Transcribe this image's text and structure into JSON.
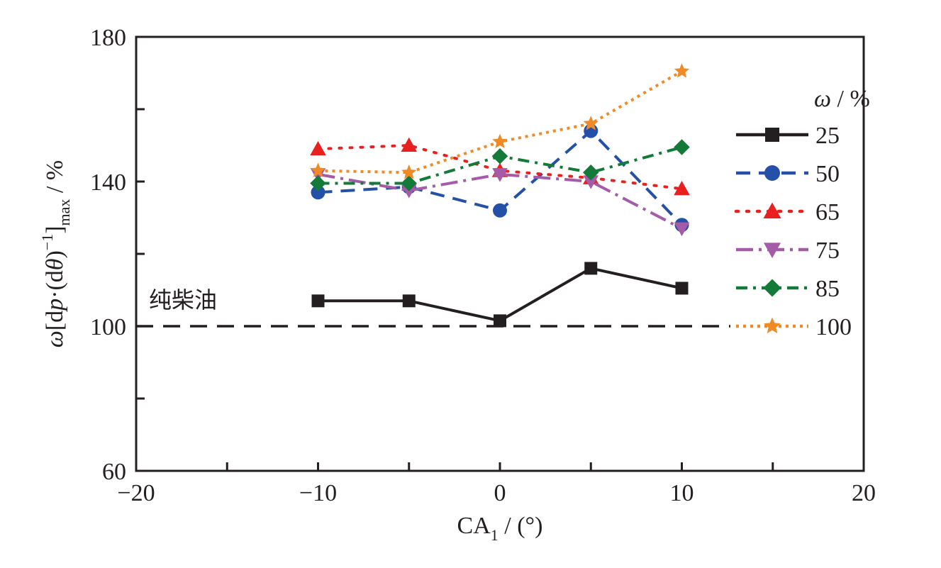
{
  "chart_data": {
    "type": "line",
    "title": "",
    "xlabel": {
      "main": "CA",
      "sub": "1",
      "suffix": " / (°)"
    },
    "ylabel": {
      "omega": "ω",
      "p1": "[d",
      "p": "p",
      "p2": "·(d",
      "theta": "θ",
      "p3": ")",
      "sup": "−1",
      "p4": "]",
      "sub": "max",
      "suffix": " / %"
    },
    "xlim": [
      -20,
      20
    ],
    "ylim": [
      60,
      180
    ],
    "xticks": [
      -20,
      -15,
      -10,
      -5,
      0,
      5,
      10,
      15,
      20
    ],
    "xtick_labels": [
      "−20",
      "",
      "−10",
      "",
      "0",
      "",
      "10",
      "",
      "20"
    ],
    "yticks": [
      60,
      80,
      100,
      120,
      140,
      160,
      180
    ],
    "ytick_labels": [
      "60",
      "",
      "100",
      "",
      "140",
      "",
      "180"
    ],
    "x": [
      -10,
      -5,
      0,
      5,
      10
    ],
    "legend_title": {
      "omega": "ω",
      "suffix": " / %"
    },
    "reference": {
      "label": "纯柴油",
      "value": 100
    },
    "series": [
      {
        "name": "25",
        "values": [
          107,
          107,
          101.5,
          116,
          110.5
        ],
        "color": "#231f20",
        "marker": "square",
        "dash": ""
      },
      {
        "name": "50",
        "values": [
          137,
          138.5,
          132,
          154,
          128
        ],
        "color": "#2450a8",
        "marker": "circle",
        "dash": "20,12"
      },
      {
        "name": "65",
        "values": [
          149,
          150,
          143,
          141,
          138
        ],
        "color": "#e8201f",
        "marker": "triangle",
        "dash": "3,12"
      },
      {
        "name": "75",
        "values": [
          142,
          137.5,
          142,
          140,
          127
        ],
        "color": "#a45ba8",
        "marker": "triangle-down",
        "dash": "24,8,4,8"
      },
      {
        "name": "85",
        "values": [
          139.5,
          139.5,
          147,
          142.5,
          149.5
        ],
        "color": "#137a3a",
        "marker": "diamond",
        "dash": "16,8,4,8"
      },
      {
        "name": "100",
        "values": [
          143,
          142.5,
          151,
          156,
          170.5
        ],
        "color": "#f08a24",
        "marker": "star",
        "dash": "4,6"
      }
    ]
  }
}
